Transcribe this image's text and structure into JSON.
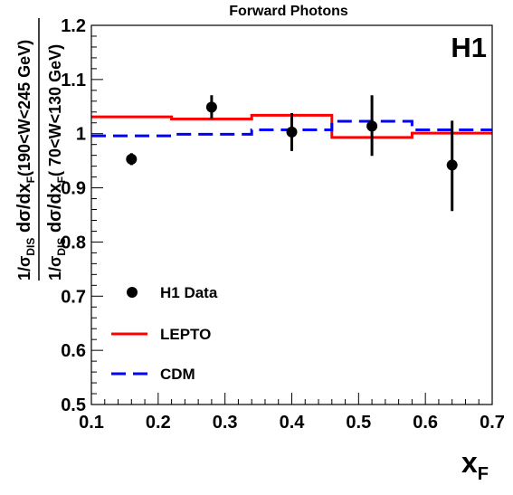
{
  "chart_data": {
    "type": "scatter",
    "title": "Forward Photons",
    "experiment_label": "H1",
    "xlabel": "x",
    "xlabel_sub": "F",
    "ylabel_num": {
      "a": "1/σ",
      "a_sub": "DIS",
      "b": " dσ/dx",
      "b_sub": "F",
      "c": "(190<W<245 GeV)"
    },
    "ylabel_den": {
      "a": "1/σ",
      "a_sub": "DIS",
      "b": " dσ/dx",
      "b_sub": "F",
      "c": "( 70<W<130 GeV)"
    },
    "xlim": [
      0.1,
      0.7
    ],
    "ylim": [
      0.5,
      1.2
    ],
    "xticks": [
      0.1,
      0.2,
      0.3,
      0.4,
      0.5,
      0.6,
      0.7
    ],
    "xtick_labels": [
      "0.1",
      "0.2",
      "0.3",
      "0.4",
      "0.5",
      "0.6",
      "0.7"
    ],
    "yticks": [
      0.5,
      0.6,
      0.7,
      0.8,
      0.9,
      1.0,
      1.1,
      1.2
    ],
    "ytick_labels": [
      "0.5",
      "0.6",
      "0.7",
      "0.8",
      "0.9",
      "1",
      "1.1",
      "1.2"
    ],
    "grid": false,
    "legend_position": "bottom-left",
    "series": [
      {
        "name": "H1 Data",
        "kind": "points",
        "color": "#000000",
        "x": [
          0.16,
          0.28,
          0.4,
          0.52,
          0.64
        ],
        "y": [
          0.953,
          1.049,
          1.003,
          1.014,
          0.942
        ],
        "yerr_low": [
          0.011,
          0.021,
          0.035,
          0.055,
          0.085
        ],
        "yerr_high": [
          0.011,
          0.022,
          0.035,
          0.057,
          0.082
        ]
      },
      {
        "name": "LEPTO",
        "kind": "step",
        "color": "#ff0000",
        "bin_edges": [
          0.1,
          0.22,
          0.34,
          0.46,
          0.58,
          0.7
        ],
        "values": [
          1.031,
          1.027,
          1.034,
          0.993,
          1.001
        ]
      },
      {
        "name": "CDM",
        "kind": "step-dashed",
        "color": "#0000ff",
        "bin_edges": [
          0.1,
          0.22,
          0.34,
          0.46,
          0.58,
          0.7
        ],
        "values": [
          0.996,
          0.999,
          1.007,
          1.023,
          1.007
        ]
      }
    ]
  }
}
